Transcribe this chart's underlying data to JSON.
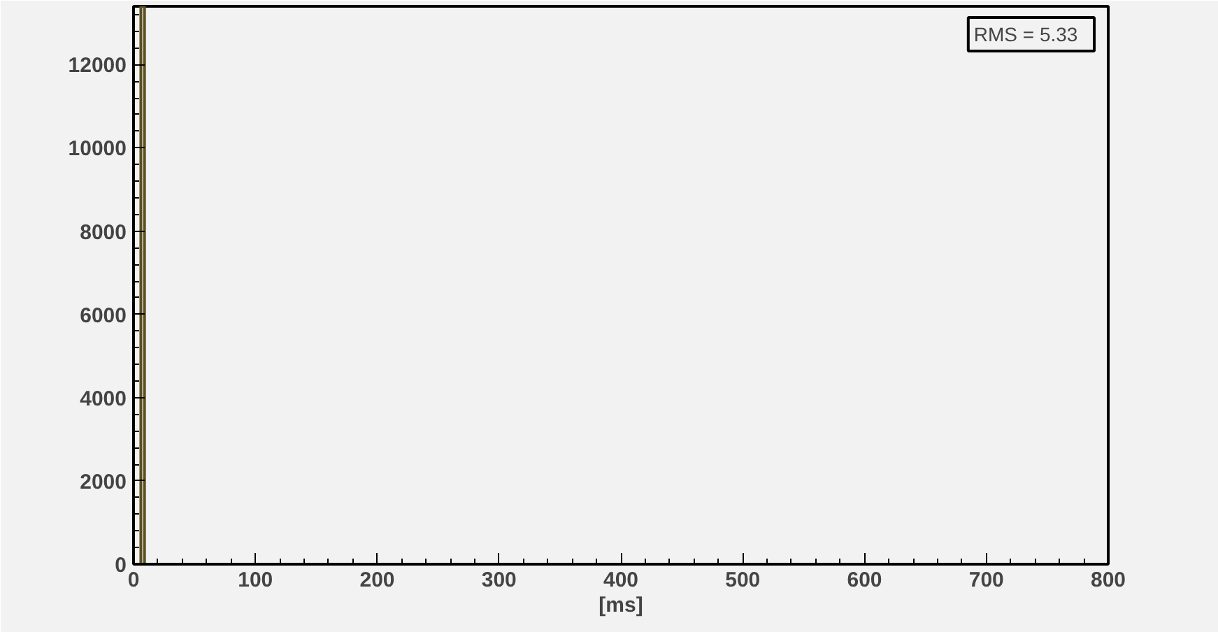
{
  "chart_data": {
    "type": "histogram",
    "xlabel": "[ms]",
    "bins": [
      0,
      6,
      9,
      800
    ],
    "values": [
      0,
      13400,
      0
    ],
    "color": "#5a5020",
    "xlim": [
      0,
      800
    ],
    "xticks": [
      0,
      100,
      200,
      300,
      400,
      500,
      600,
      700,
      800
    ],
    "ylim": [
      0,
      13400
    ],
    "yticks": [
      0,
      2000,
      4000,
      6000,
      8000,
      10000,
      12000
    ],
    "grid": false,
    "annotations": [
      "RMS   = 5.33"
    ]
  }
}
